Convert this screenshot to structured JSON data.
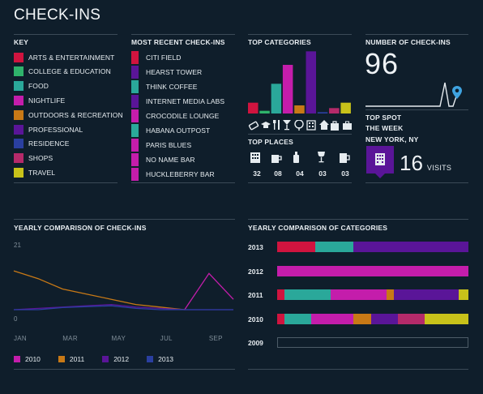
{
  "title": "CHECK-INS",
  "key": {
    "heading": "KEY",
    "items": [
      {
        "label": "ARTS & ENTERTAINMENT",
        "color": "#d0143f"
      },
      {
        "label": "COLLEGE & EDUCATION",
        "color": "#2fb36b"
      },
      {
        "label": "FOOD",
        "color": "#2aa89a"
      },
      {
        "label": "NIGHTLIFE",
        "color": "#c41dab"
      },
      {
        "label": "OUTDOORS & RECREATION",
        "color": "#c87916"
      },
      {
        "label": "PROFESSIONAL",
        "color": "#5a1598"
      },
      {
        "label": "RESIDENCE",
        "color": "#2a3fa0"
      },
      {
        "label": "SHOPS",
        "color": "#b52a6a"
      },
      {
        "label": "TRAVEL",
        "color": "#c8c21a"
      }
    ]
  },
  "recent": {
    "heading": "MOST RECENT CHECK-INS",
    "items": [
      {
        "label": "CITI FIELD",
        "color": "#d0143f"
      },
      {
        "label": "HEARST TOWER",
        "color": "#5a1598"
      },
      {
        "label": "THINK COFFEE",
        "color": "#2aa89a"
      },
      {
        "label": "INTERNET MEDIA LABS",
        "color": "#5a1598"
      },
      {
        "label": "CROCODILE LOUNGE",
        "color": "#c41dab"
      },
      {
        "label": "HABANA OUTPOST",
        "color": "#2aa89a"
      },
      {
        "label": "PARIS BLUES",
        "color": "#c41dab"
      },
      {
        "label": "NO NAME BAR",
        "color": "#c41dab"
      },
      {
        "label": "HUCKLEBERRY BAR",
        "color": "#c41dab"
      }
    ]
  },
  "top_categories": {
    "heading": "TOP CATEGORIES",
    "icons": [
      "ticket-icon",
      "graduation-cap-icon",
      "fork-knife-icon",
      "cocktail-icon",
      "tree-icon",
      "building-icon",
      "house-icon",
      "shopping-bag-icon",
      "suitcase-icon"
    ]
  },
  "top_places": {
    "heading": "TOP PLACES",
    "items": [
      {
        "icon": "building-icon",
        "count": "32"
      },
      {
        "icon": "coffee-cup-icon",
        "count": "08"
      },
      {
        "icon": "beer-bottle-icon",
        "count": "04"
      },
      {
        "icon": "wine-glass-icon",
        "count": "03"
      },
      {
        "icon": "beer-mug-icon",
        "count": "03"
      }
    ]
  },
  "checkin_count": {
    "heading": "NUMBER OF CHECK-INS",
    "value": "96"
  },
  "top_spot": {
    "heading": "TOP SPOT",
    "period": "THE WEEK",
    "location": "NEW YORK, NY",
    "visits": "16",
    "visits_label": "VISITS"
  },
  "yearly_checkins": {
    "heading": "YEARLY COMPARISON OF CHECK-INS"
  },
  "yearly_categories": {
    "heading": "YEARLY COMPARISON OF CATEGORIES"
  },
  "chart_data": [
    {
      "type": "bar",
      "title": "TOP CATEGORIES",
      "categories": [
        "ARTS & ENTERTAINMENT",
        "COLLEGE & EDUCATION",
        "FOOD",
        "NIGHTLIFE",
        "OUTDOORS & RECREATION",
        "PROFESSIONAL",
        "RESIDENCE",
        "SHOPS",
        "TRAVEL"
      ],
      "values": [
        4,
        1,
        11,
        18,
        3,
        23,
        0.5,
        2,
        4
      ],
      "colors": [
        "#d0143f",
        "#2fb36b",
        "#2aa89a",
        "#c41dab",
        "#c87916",
        "#5a1598",
        "#2a3fa0",
        "#b52a6a",
        "#c8c21a"
      ],
      "ylim": [
        0,
        24
      ]
    },
    {
      "type": "line",
      "title": "YEARLY COMPARISON OF CHECK-INS",
      "x": [
        "JAN",
        "FEB",
        "MAR",
        "APR",
        "MAY",
        "JUN",
        "JUL",
        "AUG",
        "SEP",
        "OCT"
      ],
      "x_tick_labels": [
        "JAN",
        "MAR",
        "MAY",
        "JUL",
        "SEP"
      ],
      "y_tick_labels": [
        "21",
        "0"
      ],
      "ylim": [
        0,
        21
      ],
      "series": [
        {
          "name": "2010",
          "color": "#c41dab",
          "values": [
            null,
            null,
            null,
            null,
            null,
            null,
            null,
            0,
            14,
            4
          ]
        },
        {
          "name": "2011",
          "color": "#c87916",
          "values": [
            15,
            12,
            8,
            6,
            4,
            2,
            1,
            0,
            null,
            null
          ]
        },
        {
          "name": "2012",
          "color": "#5a1598",
          "values": [
            0,
            0.5,
            1,
            1.5,
            2,
            1,
            0.5,
            0,
            0,
            0
          ]
        },
        {
          "name": "2013",
          "color": "#2a3fa0",
          "values": [
            0,
            0,
            0.8,
            1.2,
            1.5,
            0.5,
            0,
            0,
            0,
            0
          ]
        }
      ]
    },
    {
      "type": "bar",
      "orientation": "horizontal-stacked",
      "title": "YEARLY COMPARISON OF CATEGORIES",
      "categories": [
        "2013",
        "2012",
        "2011",
        "2010",
        "2009"
      ],
      "segments": [
        [
          {
            "color": "#d0143f",
            "value": 20
          },
          {
            "color": "#2aa89a",
            "value": 20
          },
          {
            "color": "#5a1598",
            "value": 60
          }
        ],
        [
          {
            "color": "#c41dab",
            "value": 100
          }
        ],
        [
          {
            "color": "#d0143f",
            "value": 4
          },
          {
            "color": "#2aa89a",
            "value": 24
          },
          {
            "color": "#c41dab",
            "value": 29
          },
          {
            "color": "#c87916",
            "value": 4
          },
          {
            "color": "#5a1598",
            "value": 34
          },
          {
            "color": "#c8c21a",
            "value": 5
          }
        ],
        [
          {
            "color": "#d0143f",
            "value": 4
          },
          {
            "color": "#2aa89a",
            "value": 14
          },
          {
            "color": "#c41dab",
            "value": 22
          },
          {
            "color": "#c87916",
            "value": 9
          },
          {
            "color": "#5a1598",
            "value": 14
          },
          {
            "color": "#b52a6a",
            "value": 14
          },
          {
            "color": "#c8c21a",
            "value": 23
          }
        ],
        []
      ]
    }
  ]
}
